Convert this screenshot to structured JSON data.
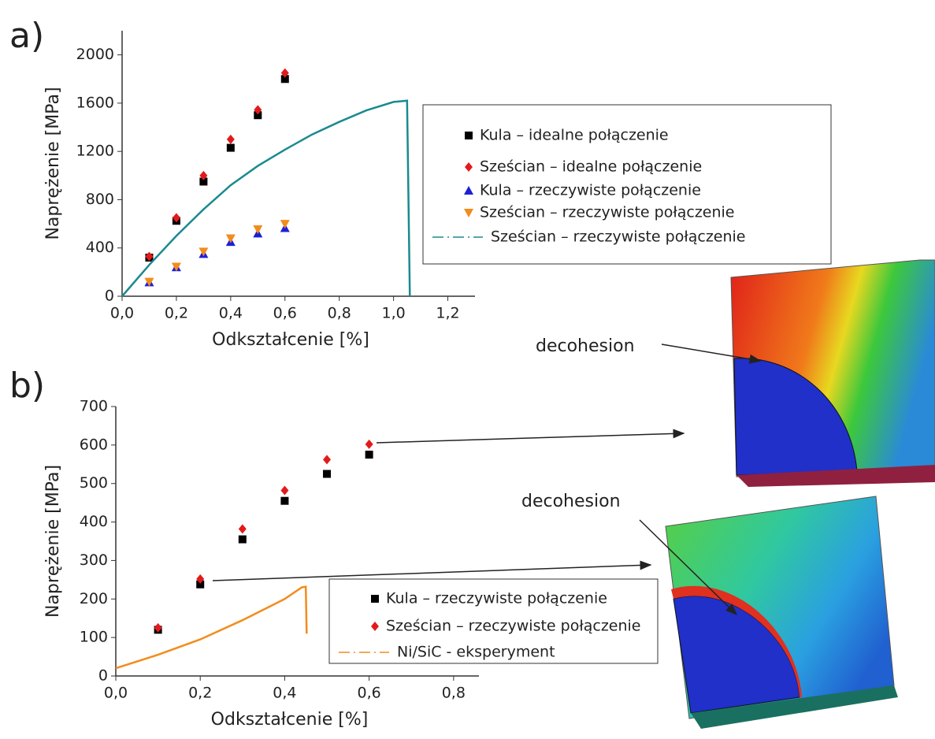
{
  "chart_data": [
    {
      "type": "scatter",
      "label": "a)",
      "xlabel": "Odkształcenie [%]",
      "ylabel": "Naprężenie [MPa]",
      "xlim": [
        0,
        1.3
      ],
      "ylim": [
        0,
        2200
      ],
      "xticks": [
        {
          "value": 0,
          "label": "0,0"
        },
        {
          "value": 0.2,
          "label": "0,2"
        },
        {
          "value": 0.4,
          "label": "0,4"
        },
        {
          "value": 0.6,
          "label": "0,6"
        },
        {
          "value": 0.8,
          "label": "0,8"
        },
        {
          "value": 1.0,
          "label": "1,0"
        },
        {
          "value": 1.2,
          "label": "1,2"
        }
      ],
      "yticks": [
        0,
        400,
        800,
        1200,
        1600,
        2000
      ],
      "series": [
        {
          "name": "Kula – idealne połączenie",
          "color": "#000000",
          "marker": "square",
          "x": [
            0.1,
            0.2,
            0.3,
            0.4,
            0.5,
            0.6
          ],
          "values": [
            320,
            625,
            950,
            1230,
            1500,
            1800
          ]
        },
        {
          "name": "Sześcian – idealne połączenie",
          "color": "#e31a1c",
          "marker": "diamond",
          "x": [
            0.1,
            0.2,
            0.3,
            0.4,
            0.5,
            0.6
          ],
          "values": [
            330,
            650,
            1000,
            1300,
            1545,
            1850
          ]
        },
        {
          "name": "Kula – rzeczywiste połączenie",
          "color": "#1f1fd6",
          "marker": "triangle",
          "x": [
            0.1,
            0.2,
            0.3,
            0.4,
            0.5,
            0.6
          ],
          "values": [
            115,
            240,
            350,
            450,
            520,
            565
          ]
        },
        {
          "name": "Sześcian – rzeczywiste połączenie",
          "color": "#f28c1c",
          "marker": "triangle-down",
          "x": [
            0.1,
            0.2,
            0.3,
            0.4,
            0.5,
            0.6
          ],
          "values": [
            120,
            245,
            370,
            480,
            555,
            600
          ]
        },
        {
          "name": "Sześcian – rzeczywiste połączenie",
          "color": "#1b8a8f",
          "x": [
            0,
            0.1,
            0.2,
            0.3,
            0.4,
            0.5,
            0.6,
            0.7,
            0.8,
            0.9,
            1.0,
            1.05,
            1.06
          ],
          "values": [
            0,
            260,
            500,
            720,
            920,
            1080,
            1215,
            1340,
            1445,
            1540,
            1610,
            1620,
            0
          ]
        }
      ]
    },
    {
      "type": "scatter",
      "label": "b)",
      "xlabel": "Odkształcenie [%]",
      "ylabel": "Naprężenie [MPa]",
      "xlim": [
        0,
        0.86
      ],
      "ylim": [
        0,
        700
      ],
      "xticks": [
        {
          "value": 0,
          "label": "0,0"
        },
        {
          "value": 0.2,
          "label": "0,2"
        },
        {
          "value": 0.4,
          "label": "0,4"
        },
        {
          "value": 0.6,
          "label": "0,6"
        },
        {
          "value": 0.8,
          "label": "0,8"
        }
      ],
      "yticks": [
        0,
        100,
        200,
        300,
        400,
        500,
        600,
        700
      ],
      "series": [
        {
          "name": "Kula – rzeczywiste połączenie",
          "color": "#000000",
          "marker": "square",
          "x": [
            0.1,
            0.2,
            0.3,
            0.4,
            0.5,
            0.6
          ],
          "values": [
            120,
            238,
            355,
            455,
            525,
            575
          ]
        },
        {
          "name": "Sześcian – rzeczywiste połączenie",
          "color": "#e31a1c",
          "marker": "diamond",
          "x": [
            0.1,
            0.2,
            0.3,
            0.4,
            0.5,
            0.6
          ],
          "values": [
            125,
            252,
            382,
            482,
            562,
            602
          ]
        },
        {
          "name": "Ni/SiC - eksperyment",
          "color": "#f28c1c",
          "x": [
            0,
            0.1,
            0.2,
            0.3,
            0.4,
            0.44,
            0.45,
            0.452
          ],
          "values": [
            20,
            55,
            95,
            145,
            200,
            230,
            232,
            110
          ]
        }
      ]
    }
  ],
  "annotations": [
    "decohesion",
    "decohesion"
  ]
}
